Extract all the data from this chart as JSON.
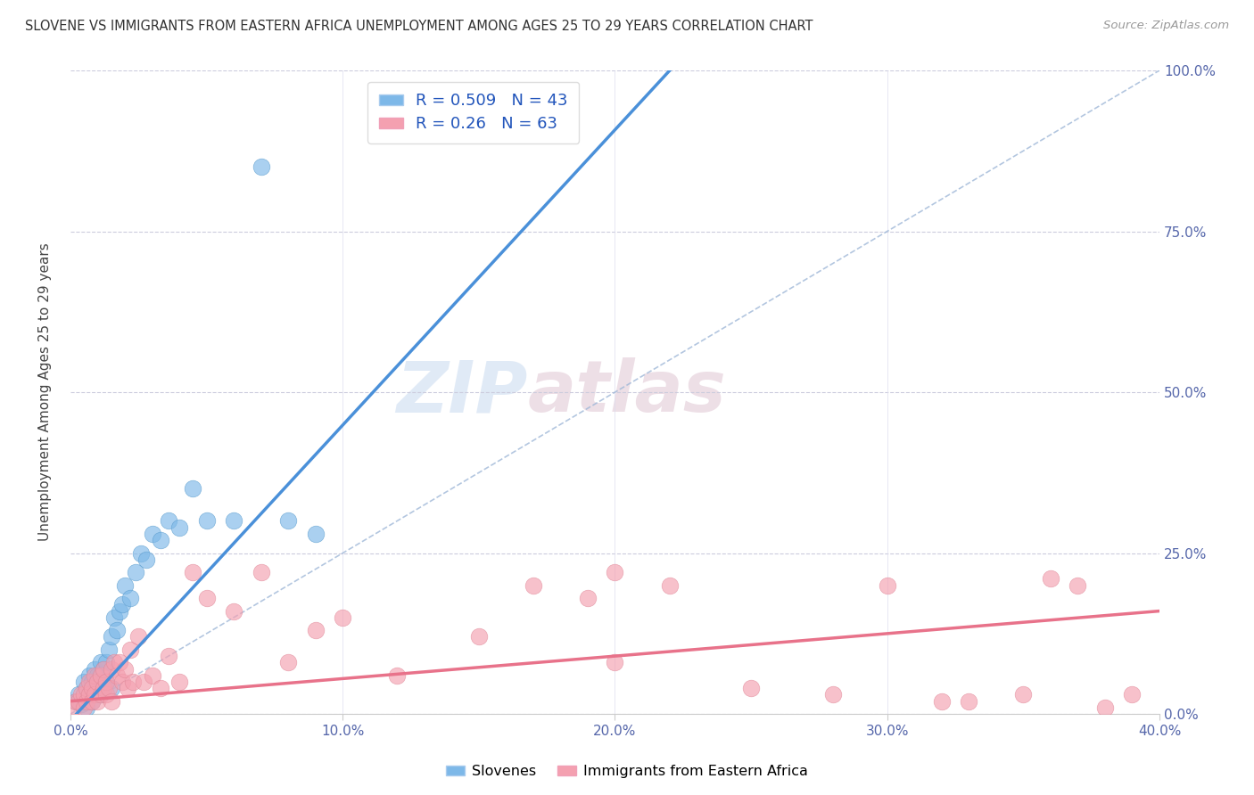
{
  "title": "SLOVENE VS IMMIGRANTS FROM EASTERN AFRICA UNEMPLOYMENT AMONG AGES 25 TO 29 YEARS CORRELATION CHART",
  "source": "Source: ZipAtlas.com",
  "ylabel": "Unemployment Among Ages 25 to 29 years",
  "xlim": [
    0.0,
    0.4
  ],
  "ylim": [
    0.0,
    1.0
  ],
  "xtick_labels": [
    "0.0%",
    "10.0%",
    "20.0%",
    "30.0%",
    "40.0%"
  ],
  "xtick_values": [
    0.0,
    0.1,
    0.2,
    0.3,
    0.4
  ],
  "ytick_labels": [
    "0.0%",
    "25.0%",
    "50.0%",
    "75.0%",
    "100.0%"
  ],
  "ytick_values": [
    0.0,
    0.25,
    0.5,
    0.75,
    1.0
  ],
  "slovene_color": "#7db8e8",
  "immigrant_color": "#f4a0b0",
  "slovene_R": 0.509,
  "slovene_N": 43,
  "immigrant_R": 0.26,
  "immigrant_N": 63,
  "trend_line_color_dashed": "#a0b8d8",
  "trend_line_color_blue": "#4a90d9",
  "trend_line_color_pink": "#e8728a",
  "watermark_zip": "ZIP",
  "watermark_atlas": "atlas",
  "legend_label_slovene": "Slovenes",
  "legend_label_immigrant": "Immigrants from Eastern Africa",
  "slovene_x": [
    0.002,
    0.003,
    0.004,
    0.005,
    0.005,
    0.006,
    0.006,
    0.007,
    0.007,
    0.008,
    0.008,
    0.009,
    0.009,
    0.01,
    0.01,
    0.011,
    0.011,
    0.012,
    0.012,
    0.013,
    0.013,
    0.014,
    0.015,
    0.015,
    0.016,
    0.017,
    0.018,
    0.019,
    0.02,
    0.022,
    0.024,
    0.026,
    0.028,
    0.03,
    0.033,
    0.036,
    0.04,
    0.045,
    0.05,
    0.06,
    0.07,
    0.08,
    0.09
  ],
  "slovene_y": [
    0.02,
    0.03,
    0.015,
    0.02,
    0.05,
    0.01,
    0.04,
    0.03,
    0.06,
    0.02,
    0.05,
    0.03,
    0.07,
    0.04,
    0.06,
    0.03,
    0.08,
    0.04,
    0.07,
    0.05,
    0.08,
    0.1,
    0.12,
    0.04,
    0.15,
    0.13,
    0.16,
    0.17,
    0.2,
    0.18,
    0.22,
    0.25,
    0.24,
    0.28,
    0.27,
    0.3,
    0.29,
    0.35,
    0.3,
    0.3,
    0.85,
    0.3,
    0.28
  ],
  "immigrant_x": [
    0.001,
    0.002,
    0.003,
    0.004,
    0.005,
    0.005,
    0.006,
    0.006,
    0.007,
    0.007,
    0.008,
    0.008,
    0.009,
    0.009,
    0.01,
    0.01,
    0.011,
    0.011,
    0.012,
    0.012,
    0.013,
    0.013,
    0.014,
    0.015,
    0.015,
    0.016,
    0.017,
    0.018,
    0.019,
    0.02,
    0.021,
    0.022,
    0.023,
    0.025,
    0.027,
    0.03,
    0.033,
    0.036,
    0.04,
    0.045,
    0.05,
    0.06,
    0.07,
    0.08,
    0.09,
    0.1,
    0.12,
    0.15,
    0.17,
    0.19,
    0.2,
    0.22,
    0.25,
    0.28,
    0.3,
    0.32,
    0.35,
    0.37,
    0.39,
    0.36,
    0.33,
    0.2,
    0.38
  ],
  "immigrant_y": [
    0.01,
    0.02,
    0.02,
    0.03,
    0.01,
    0.03,
    0.02,
    0.04,
    0.03,
    0.05,
    0.02,
    0.04,
    0.03,
    0.06,
    0.02,
    0.05,
    0.03,
    0.06,
    0.04,
    0.07,
    0.03,
    0.05,
    0.04,
    0.07,
    0.02,
    0.08,
    0.06,
    0.08,
    0.05,
    0.07,
    0.04,
    0.1,
    0.05,
    0.12,
    0.05,
    0.06,
    0.04,
    0.09,
    0.05,
    0.22,
    0.18,
    0.16,
    0.22,
    0.08,
    0.13,
    0.15,
    0.06,
    0.12,
    0.2,
    0.18,
    0.22,
    0.2,
    0.04,
    0.03,
    0.2,
    0.02,
    0.03,
    0.2,
    0.03,
    0.21,
    0.02,
    0.08,
    0.01
  ],
  "blue_trend_x0": 0.0,
  "blue_trend_y0": -0.01,
  "blue_trend_x1": 0.085,
  "blue_trend_y1": 0.38,
  "pink_trend_x0": 0.0,
  "pink_trend_y0": 0.02,
  "pink_trend_x1": 0.4,
  "pink_trend_y1": 0.16
}
